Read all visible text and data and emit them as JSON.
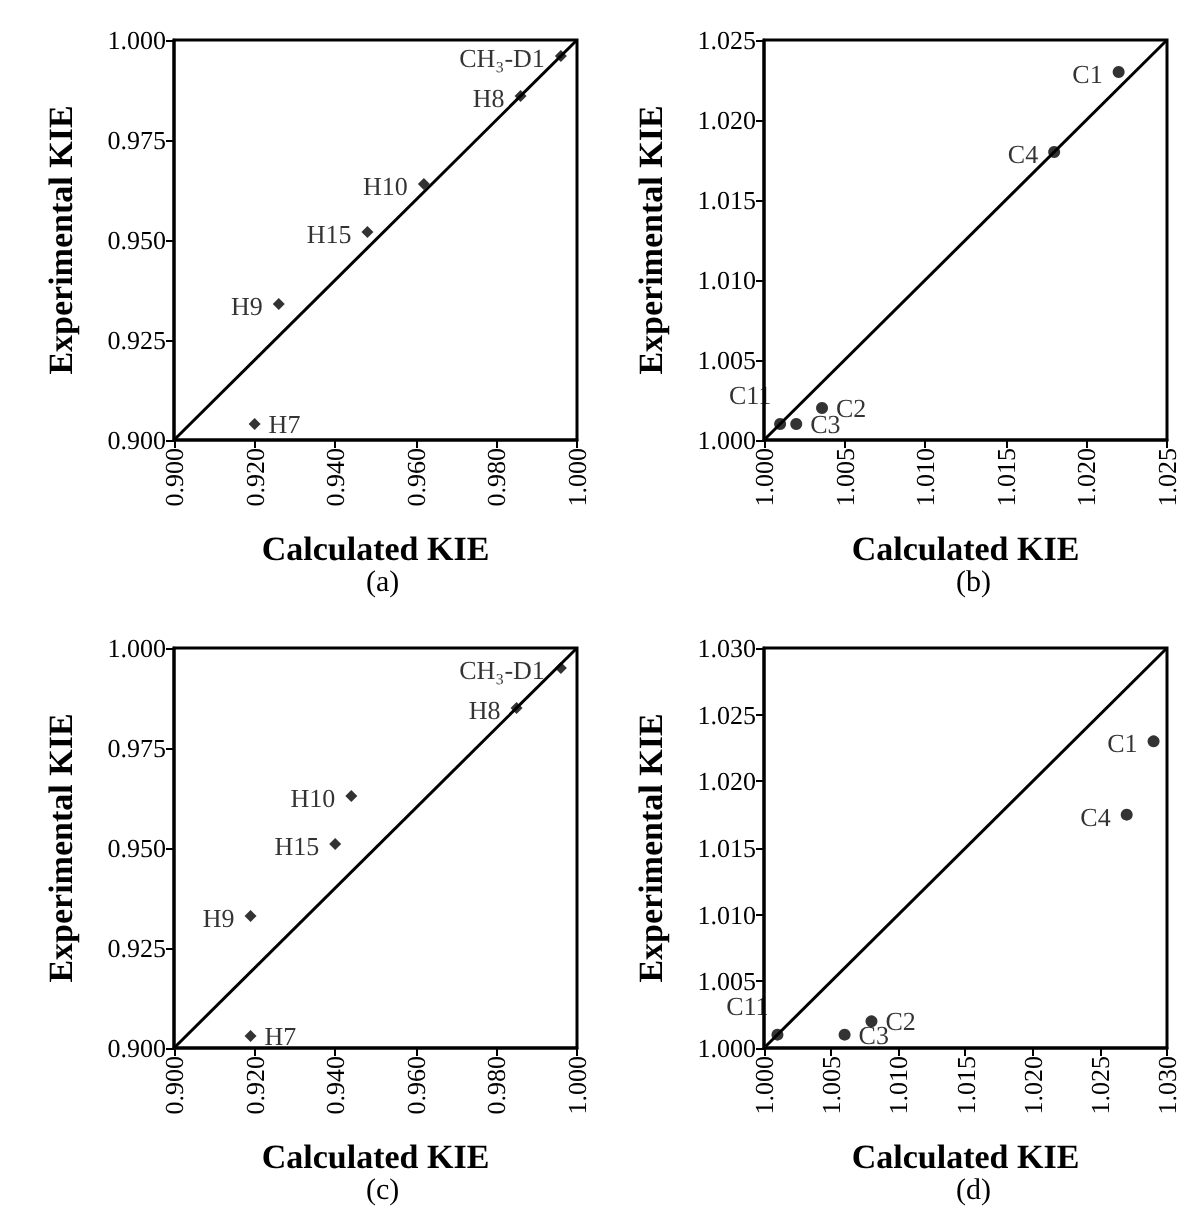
{
  "chart_data": [
    {
      "type": "scatter",
      "title": "(a)",
      "xlabel": "Calculated KIE",
      "ylabel": "Experimental KIE",
      "marker": "diamond",
      "grid": false,
      "xlim": [
        0.9,
        1.0
      ],
      "ylim": [
        0.9,
        1.0
      ],
      "xticks": [
        {
          "value": 0.9,
          "label": "0.900"
        },
        {
          "value": 0.92,
          "label": "0.920"
        },
        {
          "value": 0.94,
          "label": "0.940"
        },
        {
          "value": 0.96,
          "label": "0.960"
        },
        {
          "value": 0.98,
          "label": "0.980"
        },
        {
          "value": 1.0,
          "label": "1.000"
        }
      ],
      "yticks": [
        {
          "value": 0.9,
          "label": "0.900"
        },
        {
          "value": 0.925,
          "label": "0.925"
        },
        {
          "value": 0.95,
          "label": "0.950"
        },
        {
          "value": 0.975,
          "label": "0.975"
        },
        {
          "value": 1.0,
          "label": "1.000"
        }
      ],
      "series": [
        {
          "type": "scatter",
          "color": "#000000",
          "x": [
            0.92,
            0.926,
            0.948,
            0.962,
            0.986,
            0.996
          ],
          "values": [
            0.904,
            0.934,
            0.952,
            0.964,
            0.986,
            0.996
          ]
        },
        {
          "type": "line",
          "marker": "none",
          "color": "#000000",
          "x": [
            0.9,
            1.0
          ],
          "values": [
            0.9,
            1.0
          ]
        }
      ],
      "annotations": [
        {
          "text": "H7",
          "x": 0.92,
          "y": 0.904
        },
        {
          "text": "H9",
          "x": 0.926,
          "y": 0.934
        },
        {
          "text": "H15",
          "x": 0.948,
          "y": 0.952
        },
        {
          "text": "H10",
          "x": 0.962,
          "y": 0.964
        },
        {
          "text": "H8",
          "x": 0.986,
          "y": 0.986
        },
        {
          "text": "CH₃-D1",
          "x": 0.996,
          "y": 0.996
        }
      ]
    },
    {
      "type": "scatter",
      "title": "(b)",
      "xlabel": "Calculated KIE",
      "ylabel": "Experimental KIE",
      "marker": "circle",
      "grid": false,
      "xlim": [
        1.0,
        1.025
      ],
      "ylim": [
        1.0,
        1.025
      ],
      "xticks": [
        {
          "value": 1.0,
          "label": "1.000"
        },
        {
          "value": 1.005,
          "label": "1.005"
        },
        {
          "value": 1.01,
          "label": "1.010"
        },
        {
          "value": 1.015,
          "label": "1.015"
        },
        {
          "value": 1.02,
          "label": "1.020"
        },
        {
          "value": 1.025,
          "label": "1.025"
        }
      ],
      "yticks": [
        {
          "value": 1.0,
          "label": "1.000"
        },
        {
          "value": 1.005,
          "label": "1.005"
        },
        {
          "value": 1.01,
          "label": "1.010"
        },
        {
          "value": 1.015,
          "label": "1.015"
        },
        {
          "value": 1.02,
          "label": "1.020"
        },
        {
          "value": 1.025,
          "label": "1.025"
        }
      ],
      "series": [
        {
          "type": "scatter",
          "color": "#000000",
          "x": [
            1.001,
            1.002,
            1.0036,
            1.018,
            1.022
          ],
          "values": [
            1.001,
            1.001,
            1.002,
            1.018,
            1.023
          ]
        },
        {
          "type": "line",
          "marker": "none",
          "color": "#000000",
          "x": [
            1.0,
            1.025
          ],
          "values": [
            1.0,
            1.025
          ]
        }
      ],
      "annotations": [
        {
          "text": "C11",
          "x": 1.001,
          "y": 1.001
        },
        {
          "text": "C3",
          "x": 1.002,
          "y": 1.001
        },
        {
          "text": "C2",
          "x": 1.0036,
          "y": 1.002
        },
        {
          "text": "C4",
          "x": 1.018,
          "y": 1.018
        },
        {
          "text": "C1",
          "x": 1.022,
          "y": 1.023
        }
      ]
    },
    {
      "type": "scatter",
      "title": "(c)",
      "xlabel": "Calculated KIE",
      "ylabel": "Experimental KIE",
      "marker": "diamond",
      "grid": false,
      "xlim": [
        0.9,
        1.0
      ],
      "ylim": [
        0.9,
        1.0
      ],
      "xticks": [
        {
          "value": 0.9,
          "label": "0.900"
        },
        {
          "value": 0.92,
          "label": "0.920"
        },
        {
          "value": 0.94,
          "label": "0.940"
        },
        {
          "value": 0.96,
          "label": "0.960"
        },
        {
          "value": 0.98,
          "label": "0.980"
        },
        {
          "value": 1.0,
          "label": "1.000"
        }
      ],
      "yticks": [
        {
          "value": 0.9,
          "label": "0.900"
        },
        {
          "value": 0.925,
          "label": "0.925"
        },
        {
          "value": 0.95,
          "label": "0.950"
        },
        {
          "value": 0.975,
          "label": "0.975"
        },
        {
          "value": 1.0,
          "label": "1.000"
        }
      ],
      "series": [
        {
          "type": "scatter",
          "color": "#000000",
          "x": [
            0.919,
            0.919,
            0.94,
            0.944,
            0.985,
            0.996
          ],
          "values": [
            0.903,
            0.933,
            0.951,
            0.963,
            0.985,
            0.995
          ]
        },
        {
          "type": "line",
          "marker": "none",
          "color": "#000000",
          "x": [
            0.9,
            1.0
          ],
          "values": [
            0.9,
            1.0
          ]
        }
      ],
      "annotations": [
        {
          "text": "H7",
          "x": 0.919,
          "y": 0.903
        },
        {
          "text": "H9",
          "x": 0.919,
          "y": 0.933
        },
        {
          "text": "H15",
          "x": 0.94,
          "y": 0.951
        },
        {
          "text": "H10",
          "x": 0.944,
          "y": 0.963
        },
        {
          "text": "H8",
          "x": 0.985,
          "y": 0.985
        },
        {
          "text": "CH₃-D1",
          "x": 0.996,
          "y": 0.995
        }
      ]
    },
    {
      "type": "scatter",
      "title": "(d)",
      "xlabel": "Calculated KIE",
      "ylabel": "Experimental KIE",
      "marker": "circle",
      "grid": false,
      "xlim": [
        1.0,
        1.03
      ],
      "ylim": [
        1.0,
        1.03
      ],
      "xticks": [
        {
          "value": 1.0,
          "label": "1.000"
        },
        {
          "value": 1.005,
          "label": "1.005"
        },
        {
          "value": 1.01,
          "label": "1.010"
        },
        {
          "value": 1.015,
          "label": "1.015"
        },
        {
          "value": 1.02,
          "label": "1.020"
        },
        {
          "value": 1.025,
          "label": "1.025"
        },
        {
          "value": 1.03,
          "label": "1.030"
        }
      ],
      "yticks": [
        {
          "value": 1.0,
          "label": "1.000"
        },
        {
          "value": 1.005,
          "label": "1.005"
        },
        {
          "value": 1.01,
          "label": "1.010"
        },
        {
          "value": 1.015,
          "label": "1.015"
        },
        {
          "value": 1.02,
          "label": "1.020"
        },
        {
          "value": 1.025,
          "label": "1.025"
        },
        {
          "value": 1.03,
          "label": "1.030"
        }
      ],
      "series": [
        {
          "type": "scatter",
          "color": "#000000",
          "x": [
            1.001,
            1.006,
            1.008,
            1.027,
            1.029
          ],
          "values": [
            1.001,
            1.001,
            1.002,
            1.0175,
            1.023
          ]
        },
        {
          "type": "line",
          "marker": "none",
          "color": "#000000",
          "x": [
            1.0,
            1.03
          ],
          "values": [
            1.0,
            1.03
          ]
        }
      ],
      "annotations": [
        {
          "text": "C11",
          "x": 1.001,
          "y": 1.001
        },
        {
          "text": "C3",
          "x": 1.006,
          "y": 1.001
        },
        {
          "text": "C2",
          "x": 1.008,
          "y": 1.002
        },
        {
          "text": "C4",
          "x": 1.027,
          "y": 1.0175
        },
        {
          "text": "C1",
          "x": 1.029,
          "y": 1.023
        }
      ]
    }
  ]
}
